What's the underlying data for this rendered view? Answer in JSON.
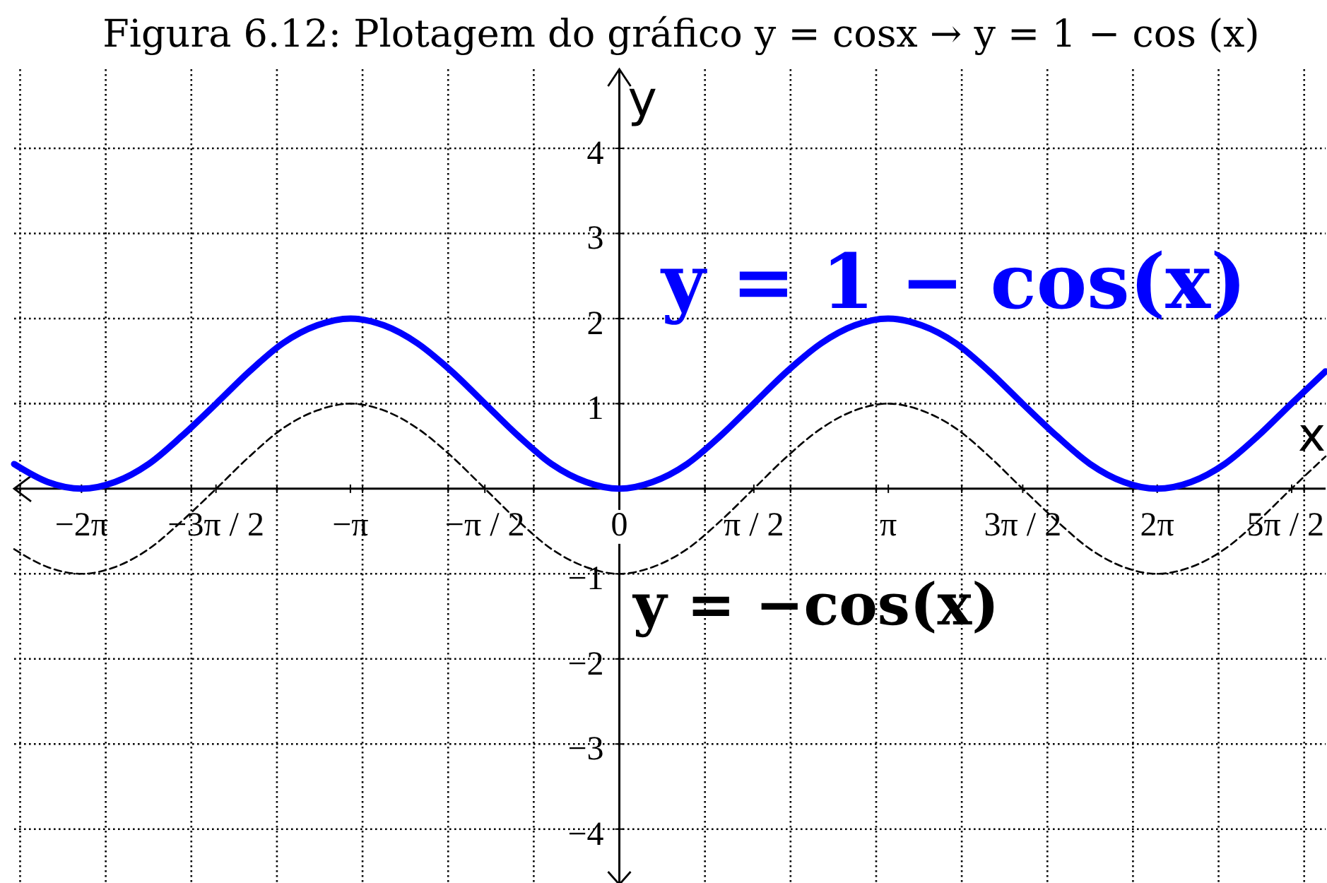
{
  "chart_data": {
    "type": "line",
    "title": "Figura 6.12: Plotagem do gráfico y = cosx → y = 1 − cos (x)",
    "xlabel": "x",
    "ylabel": "y",
    "xlim": [
      -7.07,
      8.25
    ],
    "ylim": [
      -4.65,
      4.93
    ],
    "xticks": [
      {
        "value": -7,
        "label": null
      },
      {
        "value": -6.283,
        "label": "−2π"
      },
      {
        "value": -6,
        "label": null
      },
      {
        "value": -5,
        "label": null
      },
      {
        "value": -4.712,
        "label": "−3π / 2"
      },
      {
        "value": -4,
        "label": null
      },
      {
        "value": -3.142,
        "label": "−π"
      },
      {
        "value": -3,
        "label": null
      },
      {
        "value": -2,
        "label": null
      },
      {
        "value": -1.571,
        "label": "−π / 2"
      },
      {
        "value": -1,
        "label": null
      },
      0,
      {
        "value": 1,
        "label": null
      },
      {
        "value": 1.571,
        "label": "π / 2"
      },
      {
        "value": 2,
        "label": null
      },
      {
        "value": 3,
        "label": null
      },
      {
        "value": 3.142,
        "label": "π"
      },
      {
        "value": 4,
        "label": null
      },
      {
        "value": 4.712,
        "label": "3π / 2"
      },
      {
        "value": 5,
        "label": null
      },
      {
        "value": 6,
        "label": null
      },
      {
        "value": 6.283,
        "label": "2π"
      },
      {
        "value": 7,
        "label": null
      },
      {
        "value": 7.854,
        "label": "5π / 2"
      },
      {
        "value": 8,
        "label": null
      }
    ],
    "yticks": [
      {
        "value": -4,
        "label": "−4"
      },
      {
        "value": -3,
        "label": "−3"
      },
      {
        "value": -2,
        "label": "−2"
      },
      {
        "value": -1,
        "label": "−1"
      },
      1,
      2,
      3,
      4
    ],
    "grid": true,
    "x": [
      -7.07,
      -6.68,
      -6.28,
      -5.89,
      -5.5,
      -5.11,
      -4.71,
      -4.32,
      -3.93,
      -3.53,
      -3.14,
      -2.75,
      -2.36,
      -1.96,
      -1.57,
      -1.18,
      -0.79,
      -0.39,
      0,
      0.39,
      0.79,
      1.18,
      1.57,
      1.96,
      2.36,
      2.75,
      3.14,
      3.53,
      3.93,
      4.32,
      4.71,
      5.11,
      5.5,
      5.89,
      6.28,
      6.68,
      7.07,
      7.46,
      7.85,
      8.25
    ],
    "series": [
      {
        "name": "y = 1 − cos(x)",
        "color": "#0000ff",
        "line_style": "solid",
        "values": [
          0.29,
          0.08,
          0,
          0.08,
          0.29,
          0.62,
          1,
          1.38,
          1.71,
          1.92,
          2,
          1.92,
          1.71,
          1.38,
          1,
          0.62,
          0.29,
          0.08,
          0,
          0.08,
          0.29,
          0.62,
          1,
          1.38,
          1.71,
          1.92,
          2,
          1.92,
          1.71,
          1.38,
          1,
          0.62,
          0.29,
          0.08,
          0,
          0.08,
          0.29,
          0.62,
          1,
          1.38
        ]
      },
      {
        "name": "y = −cos(x)",
        "color": "#000000",
        "line_style": "dashed",
        "values": [
          -0.71,
          -0.92,
          -1,
          -0.92,
          -0.71,
          -0.38,
          0,
          0.38,
          0.71,
          0.92,
          1,
          0.92,
          0.71,
          0.38,
          0,
          -0.38,
          -0.71,
          -0.92,
          -1,
          -0.92,
          -0.71,
          -0.38,
          0,
          0.38,
          0.71,
          0.92,
          1,
          0.92,
          0.71,
          0.38,
          0,
          -0.38,
          -0.71,
          -0.92,
          -1,
          -0.92,
          -0.71,
          -0.38,
          0,
          0.38
        ]
      }
    ]
  }
}
